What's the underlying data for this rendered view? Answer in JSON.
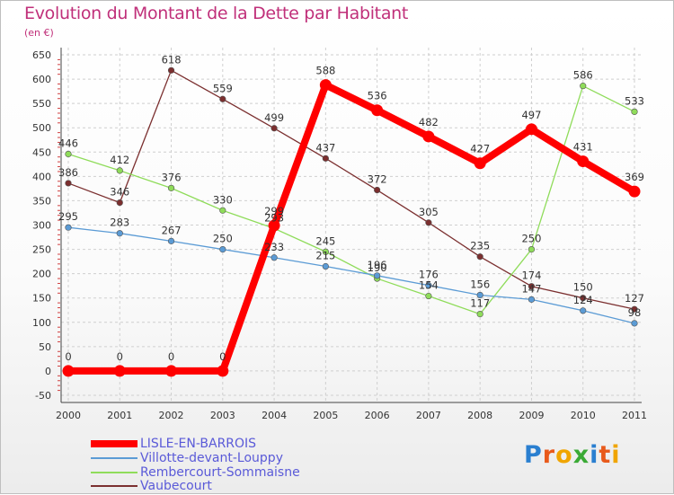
{
  "chart_data": {
    "type": "line",
    "title": "Evolution du Montant de la Dette par Habitant",
    "subtitle": "(en €)",
    "xlabel": "",
    "ylabel": "",
    "categories": [
      "2000",
      "2001",
      "2002",
      "2003",
      "2004",
      "2005",
      "2006",
      "2007",
      "2008",
      "2009",
      "2010",
      "2011"
    ],
    "ylim": [
      -50,
      650
    ],
    "yticks": [
      -50,
      0,
      50,
      100,
      150,
      200,
      250,
      300,
      350,
      400,
      450,
      500,
      550,
      600,
      650
    ],
    "grid": true,
    "legend_position": "bottom-left",
    "series": [
      {
        "name": "LISLE-EN-BARROIS",
        "color": "#ff0000",
        "values": [
          0,
          0,
          0,
          0,
          299,
          588,
          536,
          482,
          427,
          497,
          431,
          369
        ]
      },
      {
        "name": "Villotte-devant-Louppy",
        "color": "#5b9bd5",
        "values": [
          295,
          283,
          267,
          250,
          233,
          215,
          196,
          176,
          156,
          147,
          124,
          98
        ]
      },
      {
        "name": "Rembercourt-Sommaisne",
        "color": "#8fdc5a",
        "values": [
          446,
          412,
          376,
          330,
          293,
          245,
          190,
          154,
          117,
          250,
          586,
          533
        ]
      },
      {
        "name": "Vaubecourt",
        "color": "#7b2f2f",
        "values": [
          386,
          346,
          618,
          559,
          499,
          437,
          372,
          305,
          235,
          174,
          150,
          127
        ]
      }
    ]
  },
  "branding": {
    "logo_letters": [
      "P",
      "r",
      "o",
      "x",
      "i",
      "t",
      "i"
    ],
    "logo_colors": [
      "#2a7fd0",
      "#e85a1c",
      "#f0a500",
      "#3aaa35",
      "#2a7fd0",
      "#e85a1c",
      "#f0a500"
    ]
  }
}
